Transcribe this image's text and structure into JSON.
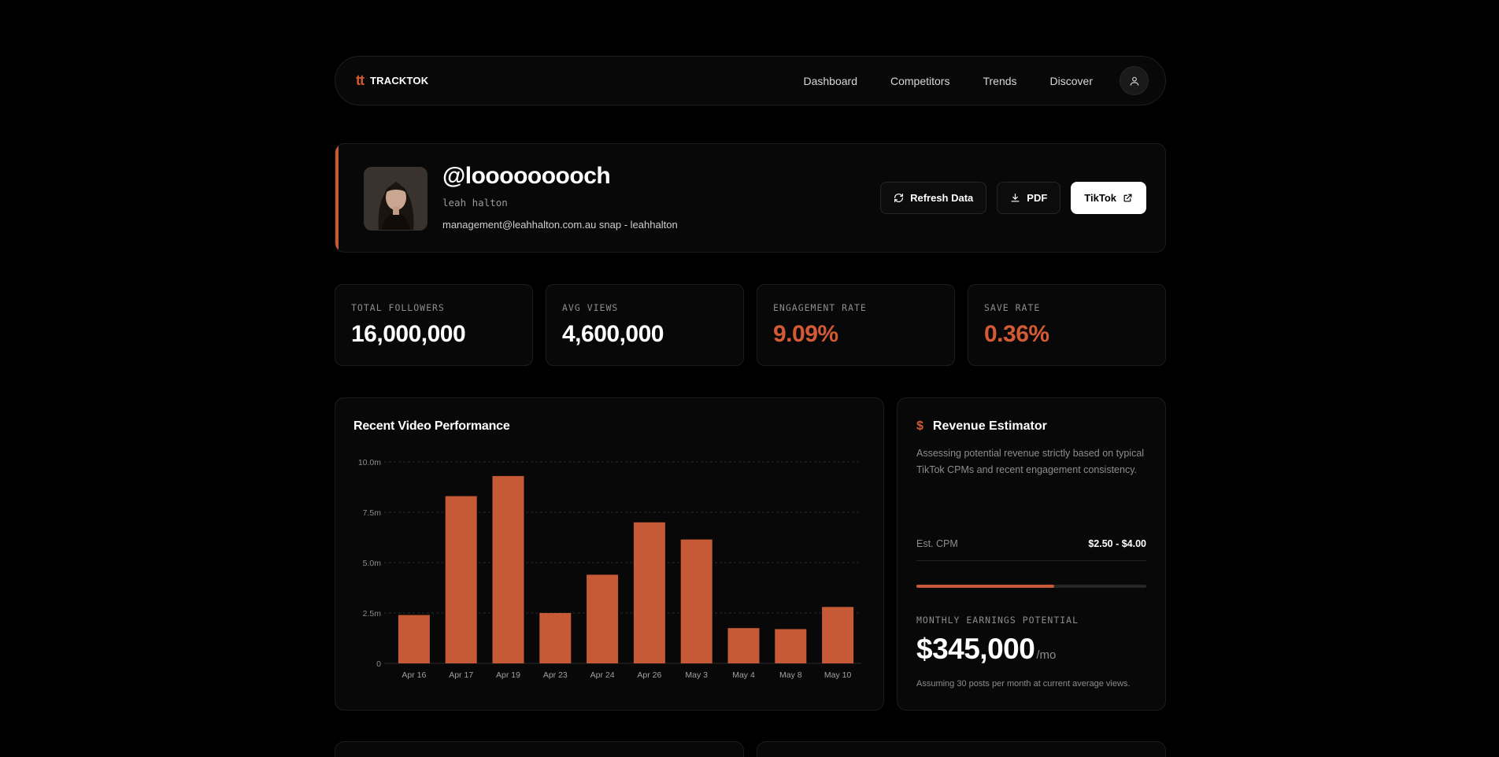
{
  "nav": {
    "brand_mark": "tt",
    "brand_name": "TRACKTOK",
    "links": [
      "Dashboard",
      "Competitors",
      "Trends",
      "Discover"
    ]
  },
  "profile": {
    "handle": "@looooooooch",
    "name": "leah halton",
    "bio": "management@leahhalton.com.au snap - leahhalton",
    "actions": {
      "refresh": "Refresh Data",
      "pdf": "PDF",
      "tiktok": "TikTok"
    }
  },
  "stats": [
    {
      "label": "TOTAL FOLLOWERS",
      "value": "16,000,000"
    },
    {
      "label": "AVG VIEWS",
      "value": "4,600,000"
    },
    {
      "label": "ENGAGEMENT RATE",
      "value": "9.09%"
    },
    {
      "label": "SAVE RATE",
      "value": "0.36%"
    }
  ],
  "chart": {
    "title": "Recent Video Performance"
  },
  "chart_data": {
    "type": "bar",
    "categories": [
      "Apr 16",
      "Apr 17",
      "Apr 19",
      "Apr 23",
      "Apr 24",
      "Apr 26",
      "May 3",
      "May 4",
      "May 8",
      "May 10"
    ],
    "values": [
      2.4,
      8.3,
      9.3,
      2.5,
      4.4,
      7.0,
      6.15,
      1.75,
      1.7,
      2.8
    ],
    "y_ticks": [
      "0",
      "2.5m",
      "5.0m",
      "7.5m",
      "10.0m"
    ],
    "ylim": [
      0,
      10
    ],
    "unit": "m",
    "grid": true,
    "bar_color": "#c65a37"
  },
  "revenue": {
    "title": "Revenue Estimator",
    "description": "Assessing potential revenue strictly based on typical TikTok CPMs and recent engagement consistency.",
    "cpm_label": "Est. CPM",
    "cpm_value": "$2.50 - $4.00",
    "progress_fraction": 0.6,
    "earnings_label": "MONTHLY EARNINGS POTENTIAL",
    "earnings_value": "$345,000",
    "earnings_unit": "/mo",
    "note": "Assuming 30 posts per month at current average views."
  },
  "colors": {
    "accent": "#d35a35",
    "bar": "#c65a37"
  }
}
